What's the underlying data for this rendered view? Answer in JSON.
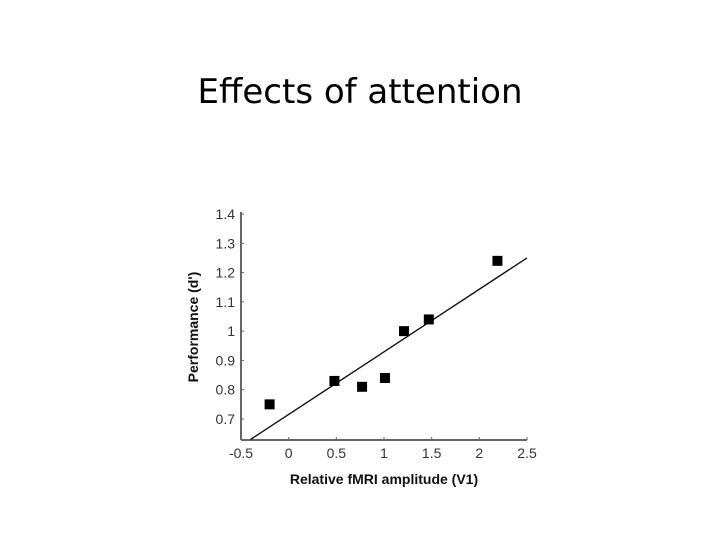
{
  "slide": {
    "title": "Effects of attention"
  },
  "chart_data": {
    "type": "scatter",
    "title": "",
    "xlabel": "Relative fMRI amplitude (V1)",
    "ylabel": "Performance (d')",
    "xlim": [
      -0.5,
      2.5
    ],
    "ylim": [
      0.63,
      1.4
    ],
    "x_ticks": [
      "-0.5",
      "0",
      "0.5",
      "1",
      "1.5",
      "2",
      "2.5"
    ],
    "y_ticks": [
      "0.7",
      "0.8",
      "0.9",
      "1",
      "1.1",
      "1.2",
      "1.3",
      "1.4"
    ],
    "grid": false,
    "legend": null,
    "series": [
      {
        "name": "data",
        "marker": "square",
        "x": [
          -0.2,
          0.48,
          0.77,
          1.01,
          1.21,
          1.47,
          2.19
        ],
        "y": [
          0.75,
          0.83,
          0.81,
          0.84,
          1.0,
          1.04,
          1.24
        ]
      },
      {
        "name": "regression line",
        "style": "line",
        "x": [
          -0.4,
          2.5
        ],
        "y": [
          0.63,
          1.25
        ]
      }
    ]
  }
}
